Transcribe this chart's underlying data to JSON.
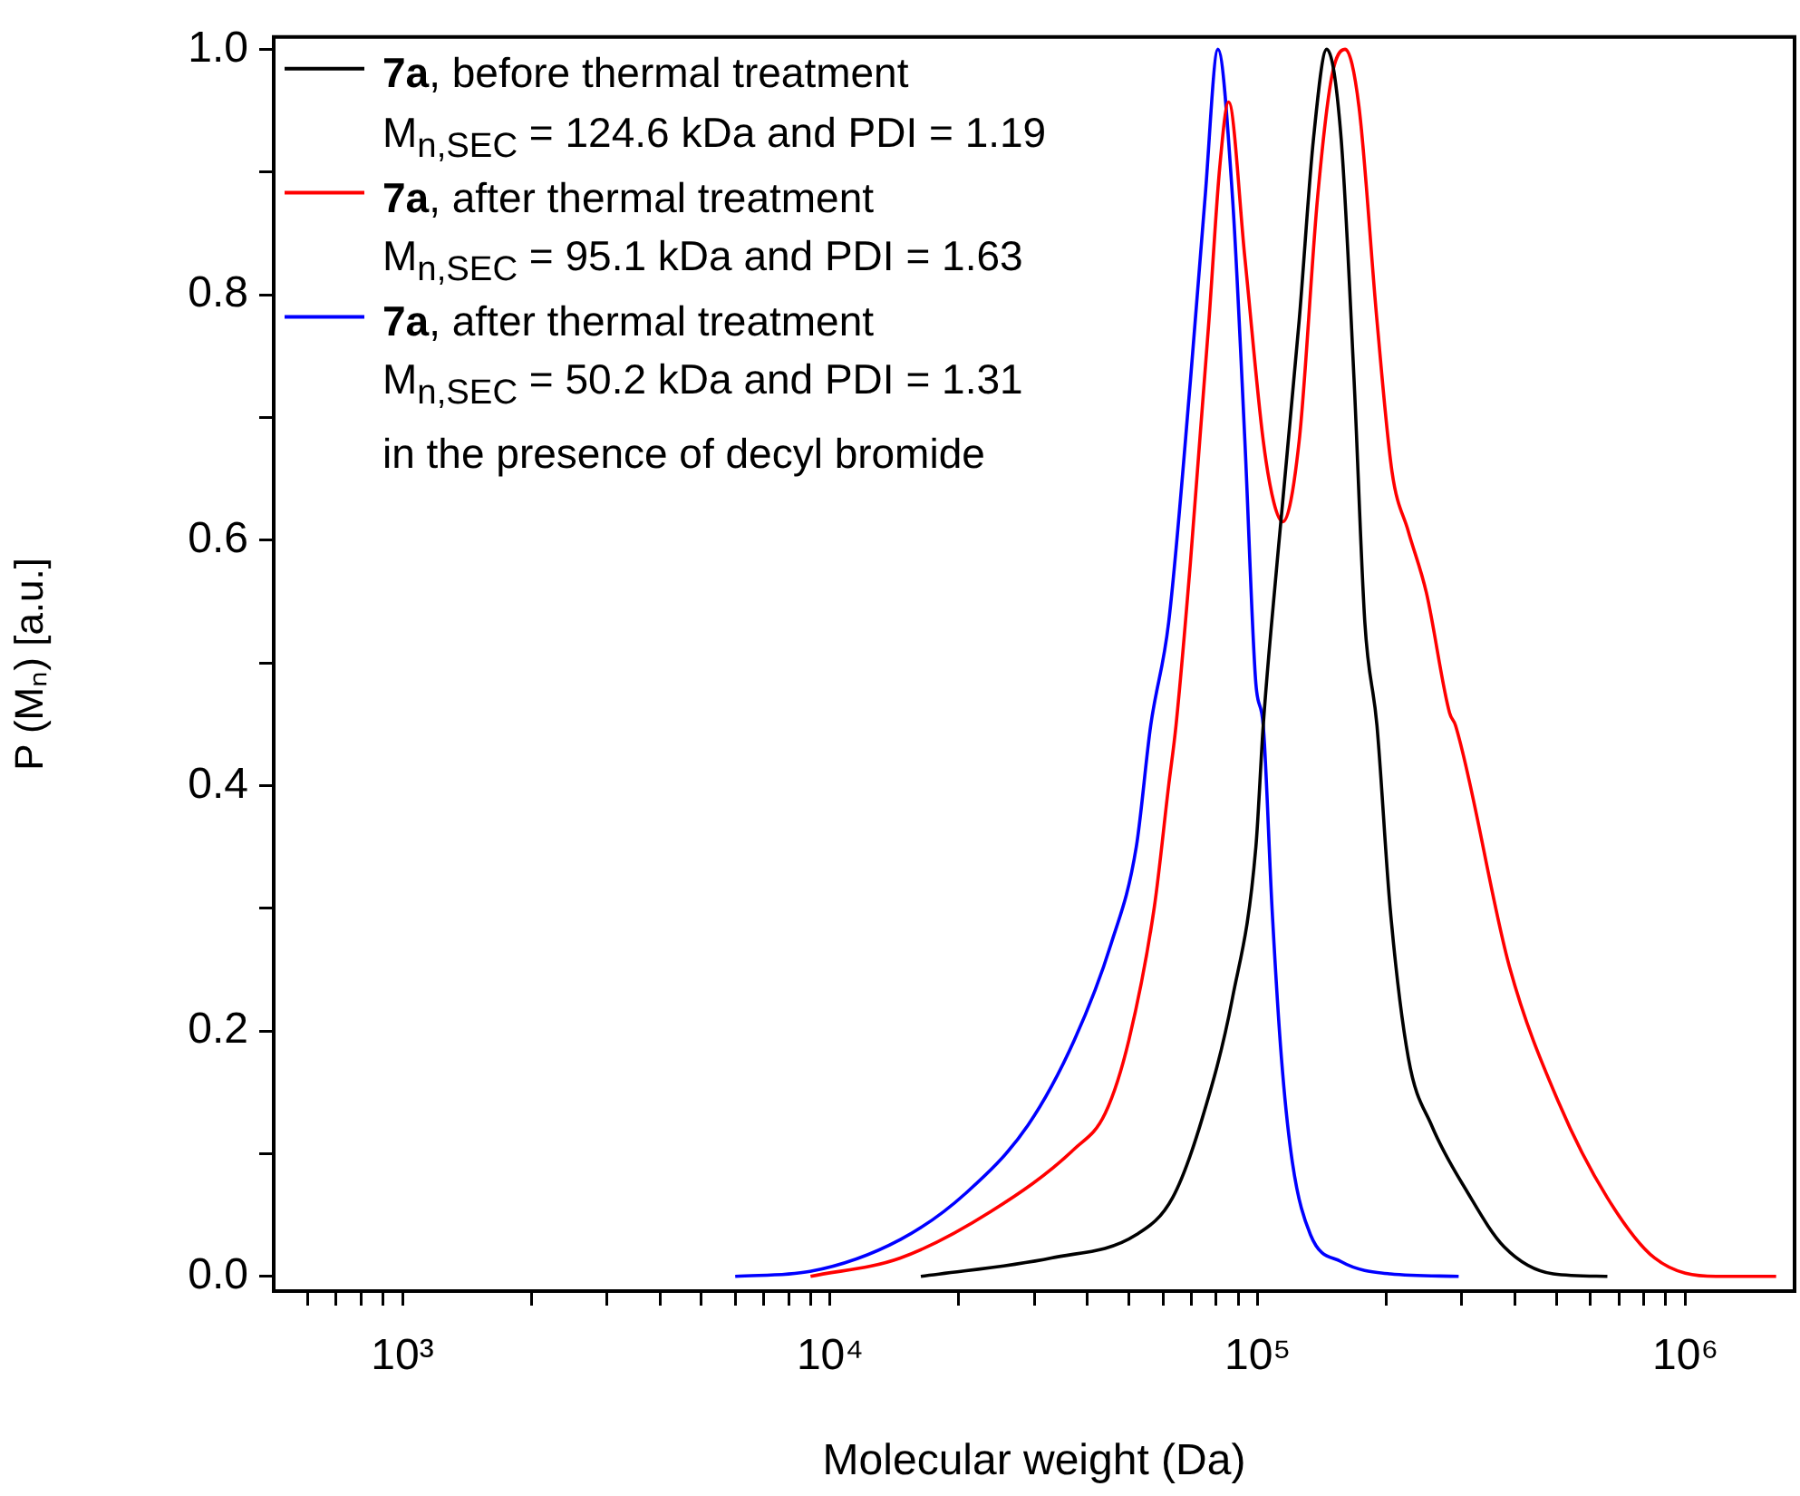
{
  "chart_data": {
    "type": "line",
    "xlabel": "Molecular weight (Da)",
    "ylabel": "P (Mₙ) [a.u.]",
    "log": "x",
    "grid": false,
    "legend": "top left",
    "marker": "none",
    "line_style": "solid",
    "xlim": [
      500,
      1800000
    ],
    "ylim": [
      -0.012,
      1.01
    ],
    "xticks": [
      {
        "value": 600,
        "label": null
      },
      {
        "value": 700,
        "label": null
      },
      {
        "value": 800,
        "label": null
      },
      {
        "value": 900,
        "label": null
      },
      {
        "value": 1000,
        "label": "10³"
      },
      {
        "value": 2000,
        "label": null
      },
      {
        "value": 3000,
        "label": null
      },
      {
        "value": 4000,
        "label": null
      },
      {
        "value": 5000,
        "label": null
      },
      {
        "value": 6000,
        "label": null
      },
      {
        "value": 7000,
        "label": null
      },
      {
        "value": 8000,
        "label": null
      },
      {
        "value": 9000,
        "label": null
      },
      {
        "value": 10000,
        "label": "10⁴"
      },
      {
        "value": 20000,
        "label": null
      },
      {
        "value": 30000,
        "label": null
      },
      {
        "value": 40000,
        "label": null
      },
      {
        "value": 50000,
        "label": null
      },
      {
        "value": 60000,
        "label": null
      },
      {
        "value": 70000,
        "label": null
      },
      {
        "value": 80000,
        "label": null
      },
      {
        "value": 90000,
        "label": null
      },
      {
        "value": 100000,
        "label": "10⁵"
      },
      {
        "value": 200000,
        "label": null
      },
      {
        "value": 300000,
        "label": null
      },
      {
        "value": 400000,
        "label": null
      },
      {
        "value": 500000,
        "label": null
      },
      {
        "value": 600000,
        "label": null
      },
      {
        "value": 700000,
        "label": null
      },
      {
        "value": 800000,
        "label": null
      },
      {
        "value": 900000,
        "label": null
      },
      {
        "value": 1000000,
        "label": "10⁶"
      }
    ],
    "yticks": [
      {
        "value": 0,
        "label": "0.0"
      },
      {
        "value": 0.1,
        "label": null
      },
      {
        "value": 0.2,
        "label": "0.2"
      },
      {
        "value": 0.3,
        "label": null
      },
      {
        "value": 0.4,
        "label": "0.4"
      },
      {
        "value": 0.5,
        "label": null
      },
      {
        "value": 0.6,
        "label": "0.6"
      },
      {
        "value": 0.7,
        "label": null
      },
      {
        "value": 0.8,
        "label": "0.8"
      },
      {
        "value": 0.9,
        "label": null
      },
      {
        "value": 1.0,
        "label": "1.0"
      }
    ],
    "series": [
      {
        "name": "7a, before thermal treatment\nM$_{n,SEC}$ = 124.6 kDa and PDI = 1.19",
        "color": "#000000",
        "x": [
          16300,
          32900,
          52000,
          63200,
          73900,
          87300,
          99000,
          103000,
          111000,
          125000,
          135000,
          145000,
          156700,
          168000,
          178000,
          190000,
          204000,
          225000,
          255000,
          310000,
          377000,
          491000,
          657000
        ],
        "values": [
          0,
          0.015,
          0.034,
          0.064,
          0.127,
          0.227,
          0.35,
          0.449,
          0.582,
          0.779,
          0.927,
          1.0,
          0.927,
          0.73,
          0.533,
          0.449,
          0.3,
          0.178,
          0.123,
          0.068,
          0.024,
          0.002,
          0
        ]
      },
      {
        "name": "7a, after thermal treatment\nM$_{n,SEC}$ = 95.1 kDa and PDI = 1.63",
        "color": "#ff0000",
        "x": [
          9000,
          14600,
          23800,
          37300,
          44000,
          50000,
          57300,
          61900,
          64400,
          69600,
          76900,
          81500,
          85500,
          93300,
          103000,
          109000,
          114500,
          125000,
          138000,
          149000,
          160000,
          172500,
          190000,
          206000,
          225000,
          248000,
          281000,
          290000,
          388000,
          505000,
          657000,
          847000,
          1180000,
          1630000
        ],
        "values": [
          0,
          0.015,
          0.053,
          0.104,
          0.133,
          0.193,
          0.301,
          0.4,
          0.449,
          0.582,
          0.779,
          0.904,
          0.957,
          0.83,
          0.681,
          0.631,
          0.615,
          0.681,
          0.879,
          0.978,
          1.0,
          0.953,
          0.779,
          0.656,
          0.607,
          0.557,
          0.459,
          0.449,
          0.252,
          0.142,
          0.064,
          0.015,
          0,
          0
        ]
      },
      {
        "name": "7a, after thermal treatment\nM$_{n,SEC}$ = 50.2 kDa and PDI = 1.31\nin the presence of decyl bromide",
        "color": "#0000ff",
        "x": [
          6000,
          8980,
          14600,
          20800,
          29000,
          37300,
          45400,
          52000,
          56200,
          61900,
          69600,
          75300,
          80700,
          87300,
          93300,
          99000,
          103000,
          108000,
          113600,
          120500,
          132800,
          156700,
          204000,
          295000
        ],
        "values": [
          0,
          0.004,
          0.03,
          0.068,
          0.123,
          0.193,
          0.271,
          0.35,
          0.449,
          0.533,
          0.73,
          0.879,
          1.0,
          0.879,
          0.681,
          0.483,
          0.449,
          0.3,
          0.178,
          0.093,
          0.034,
          0.012,
          0.002,
          0
        ]
      }
    ]
  }
}
